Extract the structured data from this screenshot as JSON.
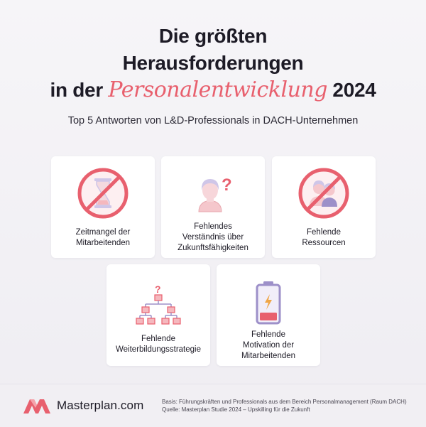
{
  "title": {
    "line1": "Die größten",
    "line2": "Herausforderungen",
    "line3_prefix": "in der",
    "line3_highlight": "Personalentwicklung",
    "line3_suffix": "2024"
  },
  "subtitle": "Top 5 Antworten von L&D-Professionals in DACH-Unternehmen",
  "cards": [
    {
      "label_line1": "Zeitmangel der",
      "label_line2": "Mitarbeitenden",
      "icon": "hourglass-prohibited-icon"
    },
    {
      "label_line1": "Fehlendes",
      "label_line2": "Verständnis über",
      "label_line3": "Zukunftsfähigkeiten",
      "icon": "person-question-icon"
    },
    {
      "label_line1": "Fehlende",
      "label_line2": "Ressourcen",
      "icon": "people-prohibited-icon"
    },
    {
      "label_line1": "Fehlende",
      "label_line2": "Weiterbildungsstrategie",
      "icon": "org-chart-question-icon"
    },
    {
      "label_line1": "Fehlende",
      "label_line2": "Motivation der",
      "label_line3": "Mitarbeitenden",
      "icon": "low-battery-icon"
    }
  ],
  "footer": {
    "brand": "Masterplan.com",
    "basis": "Basis: Führungskräften und Professionals aus dem Bereich Personalmanagement (Raum DACH)",
    "source": "Quelle: Masterplan Studie 2024 – Upskilling für die Zukunft"
  },
  "colors": {
    "accent": "#e8606e",
    "accent_light": "#f5b8be",
    "lilac": "#cfc6e8",
    "text": "#1d1b26"
  }
}
